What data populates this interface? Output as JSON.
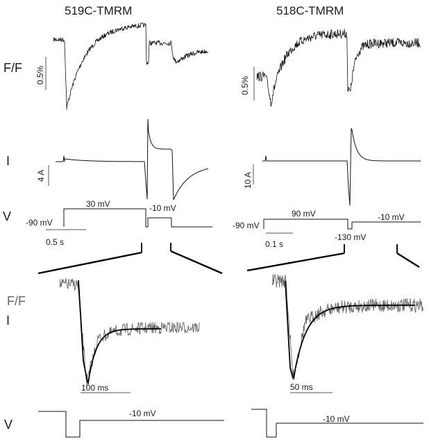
{
  "panels": {
    "left_title": "519C-TMRM",
    "right_title": "518C-TMRM"
  },
  "row_labels": {
    "ff_top": "F/F",
    "current": "I",
    "voltage_top": "V",
    "ff_zoom": "F/F",
    "i_zoom": "I",
    "voltage_bottom": "V"
  },
  "scale_bars": {
    "left_fluor": "0.5%",
    "right_fluor": "0.5%",
    "left_current": "4  A",
    "right_current": "10  A",
    "left_time": "0.5  s",
    "right_time": "0.1  s",
    "left_zoom_time": "100 ms",
    "right_zoom_time": "50 ms"
  },
  "voltage_labels": {
    "left_hold": "-90 mV",
    "left_step": "30 mV",
    "left_test": "-10 mV",
    "right_hold": "-90 mV",
    "right_step": "90 mV",
    "right_test": "-10 mV",
    "right_hyper": "-130 mV",
    "left_bottom": "-10 mV",
    "right_bottom": "-10 mV"
  }
}
